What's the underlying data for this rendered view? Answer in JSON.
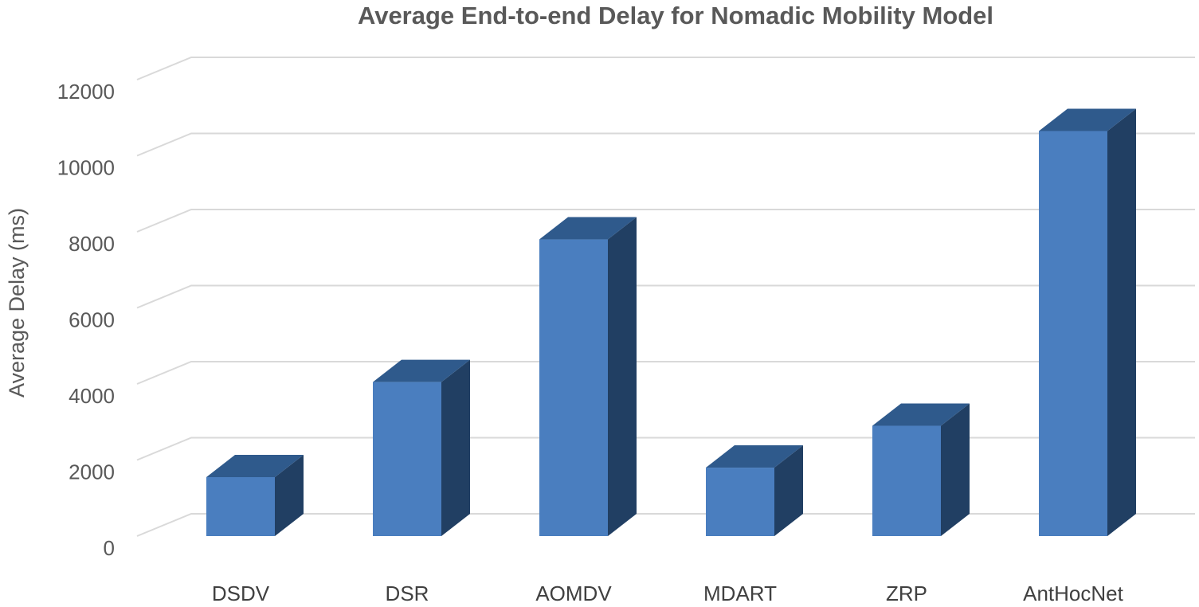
{
  "chart_data": {
    "type": "bar",
    "title": "Average End-to-end Delay for Nomadic Mobility Model",
    "xlabel": "",
    "ylabel": "Average Delay (ms)",
    "categories": [
      "DSDV",
      "DSR",
      "AOMDV",
      "MDART",
      "ZRP",
      "AntHocNet"
    ],
    "values": [
      1550,
      4050,
      7800,
      1800,
      2900,
      10650
    ],
    "ylim": [
      0,
      12000
    ],
    "yticks": [
      0,
      2000,
      4000,
      6000,
      8000,
      10000,
      12000
    ],
    "grid": true,
    "legend": "none",
    "style": "3d-column"
  },
  "colors": {
    "bar_front": "#4A7EBF",
    "bar_top": "#2F5A8C",
    "bar_side": "#213F63",
    "grid": "#D9D9D9",
    "text": "#595959"
  }
}
